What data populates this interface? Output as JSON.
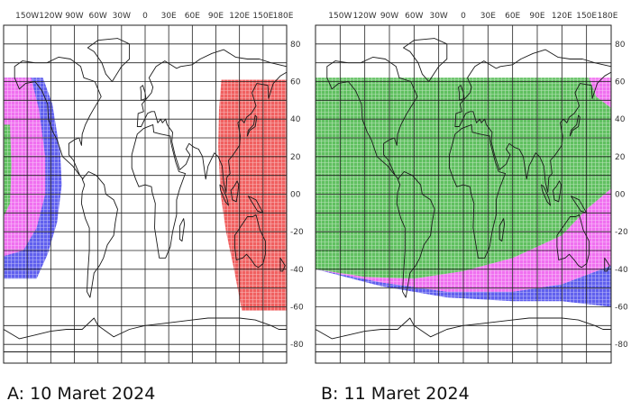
{
  "maps": [
    {
      "caption": "A: 10 Maret 2024",
      "longitude_labels": [
        "150W",
        "120W",
        "90W",
        "60W",
        "30W",
        "0",
        "30E",
        "60E",
        "90E",
        "120E",
        "150E",
        "180E"
      ],
      "latitude_labels": [
        "80",
        "60",
        "40",
        "20",
        "00",
        "-20",
        "-40",
        "-60",
        "-80"
      ],
      "zones": [
        {
          "color": "#f06060",
          "description": "east visibility region"
        },
        {
          "color": "#6060ee",
          "description": "west outer band"
        },
        {
          "color": "#f070f0",
          "description": "west middle band"
        },
        {
          "color": "#60c060",
          "description": "west inner region"
        }
      ]
    },
    {
      "caption": "B: 11 Maret 2024",
      "longitude_labels": [
        "150W",
        "120W",
        "90W",
        "60W",
        "30W",
        "0",
        "30E",
        "60E",
        "90E",
        "120E",
        "150E",
        "180E"
      ],
      "latitude_labels": [
        "80",
        "60",
        "40",
        "20",
        "00",
        "-20",
        "-40",
        "-60",
        "-80"
      ],
      "zones": [
        {
          "color": "#60c060",
          "description": "main visibility region"
        },
        {
          "color": "#f070f0",
          "description": "southern band"
        },
        {
          "color": "#6060ee",
          "description": "southern outer band"
        },
        {
          "color": "#f070f0",
          "description": "north-east corner"
        }
      ]
    }
  ]
}
